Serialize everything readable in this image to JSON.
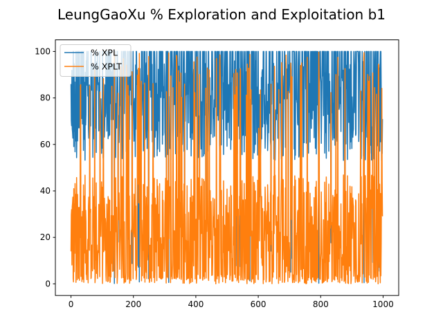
{
  "chart_data": {
    "type": "line",
    "title": "LeungGaoXu % Exploration and Exploitation b1",
    "xlabel": "",
    "ylabel": "",
    "xlim": [
      -50,
      1050
    ],
    "ylim": [
      -5,
      105
    ],
    "xticks": [
      0,
      200,
      400,
      600,
      800,
      1000
    ],
    "yticks": [
      0,
      20,
      40,
      60,
      80,
      100
    ],
    "legend_position": "top-left",
    "grid": false,
    "colors": {
      "xpl": "#1f77b4",
      "xplt": "#ff7f0e"
    },
    "n_points": 1000,
    "series": [
      {
        "name": "% XPL",
        "color": "#1f77b4",
        "description_values": {
          "typical_min": 53,
          "max": 100,
          "start": 86
        }
      },
      {
        "name": "% XPLT",
        "color": "#ff7f0e",
        "description_values": {
          "typical_max": 47,
          "min": 0,
          "start": 14
        }
      }
    ]
  }
}
